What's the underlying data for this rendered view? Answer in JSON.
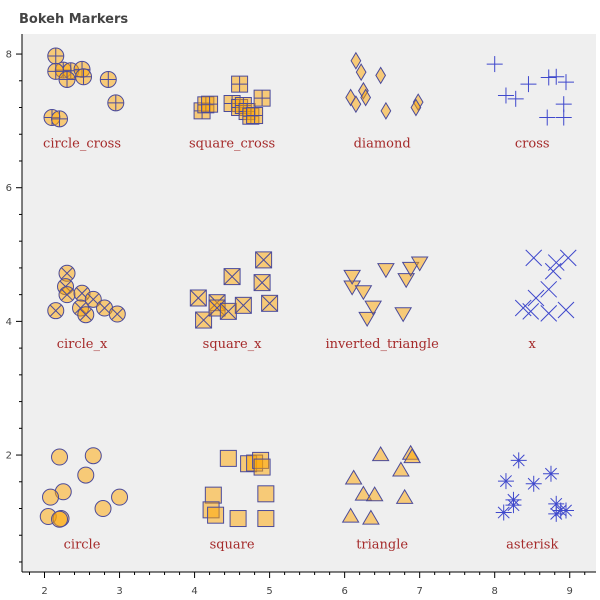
{
  "chart_data": {
    "type": "scatter",
    "title": "Bokeh Markers",
    "xlabel": "",
    "ylabel": "",
    "xlim": [
      1.7,
      9.35
    ],
    "ylim": [
      0.25,
      8.3
    ],
    "x_ticks": [
      "2",
      "3",
      "4",
      "5",
      "6",
      "7",
      "8",
      "9"
    ],
    "y_ticks": [
      "2",
      "4",
      "6",
      "8"
    ],
    "grid": false,
    "plot_background": "#efefef",
    "colors": {
      "fill": "#ffa500",
      "fill_opacity": 0.5,
      "stroke": "#4b4b9a",
      "plain_marker_stroke": "#3f48cc",
      "label_color": "#a52a2a"
    },
    "series": [
      {
        "name": "circle_cross",
        "marker": "circle_cross",
        "label_pos": [
          2.5,
          6.6
        ],
        "points": [
          [
            2.15,
            7.97
          ],
          [
            2.25,
            7.76
          ],
          [
            2.35,
            7.75
          ],
          [
            2.5,
            7.77
          ],
          [
            2.52,
            7.66
          ],
          [
            2.15,
            7.74
          ],
          [
            2.3,
            7.62
          ],
          [
            2.85,
            7.62
          ],
          [
            2.1,
            7.05
          ],
          [
            2.2,
            7.03
          ],
          [
            2.95,
            7.27
          ]
        ]
      },
      {
        "name": "square_cross",
        "marker": "square_cross",
        "label_pos": [
          4.5,
          6.6
        ],
        "points": [
          [
            4.1,
            7.15
          ],
          [
            4.15,
            7.24
          ],
          [
            4.2,
            7.25
          ],
          [
            4.5,
            7.26
          ],
          [
            4.6,
            7.55
          ],
          [
            4.6,
            7.2
          ],
          [
            4.65,
            7.23
          ],
          [
            4.7,
            7.14
          ],
          [
            4.75,
            7.07
          ],
          [
            4.9,
            7.34
          ],
          [
            4.8,
            7.08
          ]
        ]
      },
      {
        "name": "diamond",
        "marker": "diamond",
        "label_pos": [
          6.5,
          6.6
        ],
        "points": [
          [
            6.15,
            7.9
          ],
          [
            6.22,
            7.73
          ],
          [
            6.25,
            7.45
          ],
          [
            6.28,
            7.35
          ],
          [
            6.08,
            7.35
          ],
          [
            6.15,
            7.25
          ],
          [
            6.48,
            7.68
          ],
          [
            6.55,
            7.15
          ],
          [
            6.98,
            7.28
          ],
          [
            6.95,
            7.2
          ]
        ]
      },
      {
        "name": "cross",
        "marker": "cross",
        "label_pos": [
          8.5,
          6.6
        ],
        "points": [
          [
            8.0,
            7.85
          ],
          [
            8.15,
            7.38
          ],
          [
            8.28,
            7.33
          ],
          [
            8.45,
            7.55
          ],
          [
            8.72,
            7.65
          ],
          [
            8.82,
            7.66
          ],
          [
            8.95,
            7.58
          ],
          [
            8.92,
            7.25
          ],
          [
            8.7,
            7.05
          ],
          [
            8.92,
            7.05
          ]
        ]
      },
      {
        "name": "circle_x",
        "marker": "circle_x",
        "label_pos": [
          2.5,
          3.6
        ],
        "points": [
          [
            2.3,
            4.72
          ],
          [
            2.28,
            4.52
          ],
          [
            2.3,
            4.4
          ],
          [
            2.5,
            4.42
          ],
          [
            2.65,
            4.33
          ],
          [
            2.48,
            4.2
          ],
          [
            2.55,
            4.1
          ],
          [
            2.15,
            4.16
          ],
          [
            2.8,
            4.2
          ],
          [
            2.97,
            4.11
          ]
        ]
      },
      {
        "name": "square_x",
        "marker": "square_x",
        "label_pos": [
          4.5,
          3.6
        ],
        "points": [
          [
            4.05,
            4.35
          ],
          [
            4.12,
            4.02
          ],
          [
            4.3,
            4.28
          ],
          [
            4.3,
            4.2
          ],
          [
            4.45,
            4.15
          ],
          [
            4.5,
            4.67
          ],
          [
            4.65,
            4.24
          ],
          [
            4.9,
            4.58
          ],
          [
            4.92,
            4.92
          ],
          [
            5.0,
            4.27
          ]
        ]
      },
      {
        "name": "inverted_triangle",
        "marker": "inverted_triangle",
        "label_pos": [
          6.5,
          3.6
        ],
        "points": [
          [
            6.1,
            4.52
          ],
          [
            6.1,
            4.68
          ],
          [
            6.25,
            4.45
          ],
          [
            6.3,
            4.05
          ],
          [
            6.38,
            4.22
          ],
          [
            6.55,
            4.78
          ],
          [
            6.78,
            4.12
          ],
          [
            6.82,
            4.63
          ],
          [
            6.88,
            4.8
          ],
          [
            7.0,
            4.88
          ]
        ]
      },
      {
        "name": "x",
        "marker": "x",
        "label_pos": [
          8.5,
          3.6
        ],
        "points": [
          [
            8.52,
            4.95
          ],
          [
            8.98,
            4.95
          ],
          [
            8.82,
            4.88
          ],
          [
            8.78,
            4.75
          ],
          [
            8.72,
            4.48
          ],
          [
            8.55,
            4.35
          ],
          [
            8.38,
            4.2
          ],
          [
            8.48,
            4.15
          ],
          [
            8.72,
            4.12
          ],
          [
            8.95,
            4.17
          ]
        ]
      },
      {
        "name": "circle",
        "marker": "circle",
        "label_pos": [
          2.5,
          0.6
        ],
        "points": [
          [
            2.2,
            1.97
          ],
          [
            2.65,
            1.99
          ],
          [
            2.55,
            1.7
          ],
          [
            2.25,
            1.45
          ],
          [
            2.08,
            1.37
          ],
          [
            3.0,
            1.37
          ],
          [
            2.78,
            1.2
          ],
          [
            2.05,
            1.08
          ],
          [
            2.22,
            1.05
          ],
          [
            2.2,
            1.04
          ]
        ]
      },
      {
        "name": "square",
        "marker": "square",
        "label_pos": [
          4.5,
          0.6
        ],
        "points": [
          [
            4.45,
            1.95
          ],
          [
            4.72,
            1.87
          ],
          [
            4.8,
            1.88
          ],
          [
            4.88,
            1.92
          ],
          [
            4.9,
            1.82
          ],
          [
            4.25,
            1.4
          ],
          [
            4.95,
            1.42
          ],
          [
            4.22,
            1.18
          ],
          [
            4.28,
            1.1
          ],
          [
            4.58,
            1.05
          ],
          [
            4.95,
            1.05
          ]
        ]
      },
      {
        "name": "triangle",
        "marker": "triangle",
        "label_pos": [
          6.5,
          0.6
        ],
        "points": [
          [
            6.48,
            2.0
          ],
          [
            6.88,
            2.02
          ],
          [
            6.9,
            1.97
          ],
          [
            6.75,
            1.77
          ],
          [
            6.12,
            1.65
          ],
          [
            6.25,
            1.41
          ],
          [
            6.4,
            1.4
          ],
          [
            6.8,
            1.36
          ],
          [
            6.08,
            1.08
          ],
          [
            6.35,
            1.05
          ]
        ]
      },
      {
        "name": "asterisk",
        "marker": "asterisk",
        "label_pos": [
          8.5,
          0.6
        ],
        "points": [
          [
            8.32,
            1.92
          ],
          [
            8.75,
            1.72
          ],
          [
            8.15,
            1.61
          ],
          [
            8.52,
            1.57
          ],
          [
            8.25,
            1.33
          ],
          [
            8.25,
            1.25
          ],
          [
            8.82,
            1.27
          ],
          [
            8.88,
            1.17
          ],
          [
            8.95,
            1.17
          ],
          [
            8.12,
            1.14
          ],
          [
            8.82,
            1.12
          ]
        ]
      }
    ]
  }
}
